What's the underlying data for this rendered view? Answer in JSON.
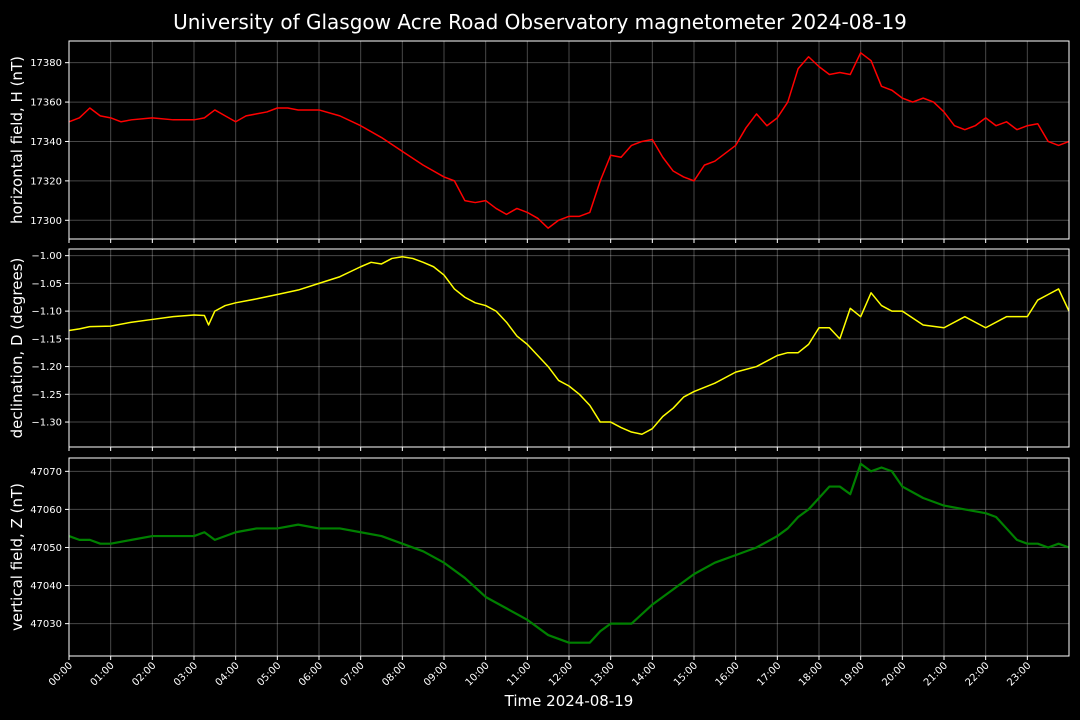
{
  "chart_data": {
    "type": "line",
    "title": "University of Glasgow Acre Road Observatory magnetometer 2024-08-19",
    "xlabel": "Time 2024-08-19",
    "x_ticks": [
      "00:00",
      "01:00",
      "02:00",
      "03:00",
      "04:00",
      "05:00",
      "06:00",
      "07:00",
      "08:00",
      "09:00",
      "10:00",
      "11:00",
      "12:00",
      "13:00",
      "14:00",
      "15:00",
      "16:00",
      "17:00",
      "18:00",
      "19:00",
      "20:00",
      "21:00",
      "22:00",
      "23:00"
    ],
    "xlim_hours": [
      0,
      24
    ],
    "grid": true,
    "panels": [
      {
        "ylabel": "horizontal field, H (nT)",
        "ylim": [
          17290.5,
          17391
        ],
        "yticks": [
          "17300",
          "17320",
          "17340",
          "17360",
          "17380"
        ],
        "ytick_values": [
          17300,
          17320,
          17340,
          17360,
          17380
        ],
        "color": "#ff0000",
        "linewidth": 1.5,
        "series": {
          "x": [
            0,
            0.25,
            0.5,
            0.75,
            1,
            1.25,
            1.5,
            2,
            2.5,
            3,
            3.25,
            3.5,
            3.75,
            4,
            4.25,
            4.5,
            4.75,
            5,
            5.25,
            5.5,
            6,
            6.5,
            7,
            7.5,
            8,
            8.5,
            9,
            9.25,
            9.5,
            9.75,
            10,
            10.25,
            10.5,
            10.75,
            11,
            11.25,
            11.5,
            11.75,
            12,
            12.25,
            12.5,
            12.75,
            13,
            13.25,
            13.5,
            13.75,
            14,
            14.25,
            14.5,
            14.75,
            15,
            15.25,
            15.5,
            15.75,
            16,
            16.25,
            16.5,
            16.75,
            17,
            17.25,
            17.5,
            17.75,
            18,
            18.25,
            18.5,
            18.75,
            19,
            19.25,
            19.5,
            19.75,
            20,
            20.25,
            20.5,
            20.75,
            21,
            21.25,
            21.5,
            21.75,
            22,
            22.25,
            22.5,
            22.75,
            23,
            23.25,
            23.5,
            23.75,
            24
          ],
          "y": [
            17350,
            17352,
            17357,
            17353,
            17352,
            17350,
            17351,
            17352,
            17351,
            17351,
            17352,
            17356,
            17353,
            17350,
            17353,
            17354,
            17355,
            17357,
            17357,
            17356,
            17356,
            17353,
            17348,
            17342,
            17335,
            17328,
            17322,
            17320,
            17310,
            17309,
            17310,
            17306,
            17303,
            17306,
            17304,
            17301,
            17296,
            17300,
            17302,
            17302,
            17304,
            17320,
            17333,
            17332,
            17338,
            17340,
            17341,
            17332,
            17325,
            17322,
            17320,
            17328,
            17330,
            17334,
            17338,
            17347,
            17354,
            17348,
            17352,
            17360,
            17377,
            17383,
            17378,
            17374,
            17375,
            17374,
            17385,
            17381,
            17368,
            17366,
            17362,
            17360,
            17362,
            17360,
            17355,
            17348,
            17346,
            17348,
            17352,
            17348,
            17350,
            17346,
            17348,
            17349,
            17340,
            17338,
            17340
          ]
        }
      },
      {
        "ylabel": "declination, D (degrees)",
        "ylim": [
          -1.345,
          -0.988
        ],
        "yticks": [
          "−1.00",
          "−1.05",
          "−1.10",
          "−1.15",
          "−1.20",
          "−1.25",
          "−1.30"
        ],
        "ytick_values": [
          -1.0,
          -1.05,
          -1.1,
          -1.15,
          -1.2,
          -1.25,
          -1.3
        ],
        "color": "#ffff00",
        "linewidth": 1.5,
        "series": {
          "x": [
            0,
            0.25,
            0.5,
            1,
            1.5,
            2,
            2.5,
            3,
            3.25,
            3.35,
            3.5,
            3.75,
            4,
            4.5,
            5,
            5.5,
            6,
            6.5,
            7,
            7.25,
            7.5,
            7.75,
            8,
            8.25,
            8.5,
            8.75,
            9,
            9.25,
            9.5,
            9.75,
            10,
            10.25,
            10.5,
            10.75,
            11,
            11.25,
            11.5,
            11.75,
            12,
            12.25,
            12.5,
            12.75,
            13,
            13.25,
            13.5,
            13.75,
            14,
            14.25,
            14.5,
            14.75,
            15,
            15.5,
            16,
            16.5,
            17,
            17.25,
            17.5,
            17.75,
            18,
            18.25,
            18.5,
            18.75,
            19,
            19.25,
            19.5,
            19.75,
            20,
            20.5,
            21,
            21.5,
            22,
            22.5,
            23,
            23.25,
            23.5,
            23.75,
            24
          ],
          "y": [
            -1.135,
            -1.132,
            -1.128,
            -1.127,
            -1.12,
            -1.115,
            -1.11,
            -1.107,
            -1.108,
            -1.125,
            -1.1,
            -1.09,
            -1.085,
            -1.078,
            -1.07,
            -1.062,
            -1.05,
            -1.038,
            -1.02,
            -1.012,
            -1.015,
            -1.005,
            -1.002,
            -1.005,
            -1.012,
            -1.02,
            -1.035,
            -1.06,
            -1.075,
            -1.085,
            -1.09,
            -1.1,
            -1.12,
            -1.145,
            -1.16,
            -1.18,
            -1.2,
            -1.225,
            -1.235,
            -1.25,
            -1.27,
            -1.3,
            -1.3,
            -1.31,
            -1.318,
            -1.322,
            -1.312,
            -1.29,
            -1.275,
            -1.255,
            -1.245,
            -1.23,
            -1.21,
            -1.2,
            -1.18,
            -1.175,
            -1.175,
            -1.16,
            -1.13,
            -1.13,
            -1.15,
            -1.095,
            -1.11,
            -1.067,
            -1.09,
            -1.1,
            -1.1,
            -1.125,
            -1.13,
            -1.11,
            -1.13,
            -1.11,
            -1.11,
            -1.08,
            -1.07,
            -1.06,
            -1.1
          ]
        }
      },
      {
        "ylabel": "vertical field, Z (nT)",
        "ylim": [
          47021.5,
          47073.5
        ],
        "yticks": [
          "47030",
          "47040",
          "47050",
          "47060",
          "47070"
        ],
        "ytick_values": [
          47030,
          47040,
          47050,
          47060,
          47070
        ],
        "color": "#008000",
        "linewidth": 2.2,
        "series": {
          "x": [
            0,
            0.25,
            0.5,
            0.75,
            1,
            1.5,
            2,
            2.5,
            3,
            3.25,
            3.5,
            4,
            4.5,
            5,
            5.5,
            6,
            6.5,
            7,
            7.5,
            8,
            8.5,
            9,
            9.5,
            10,
            10.5,
            11,
            11.5,
            12,
            12.5,
            12.75,
            13,
            13.25,
            13.5,
            14,
            14.5,
            15,
            15.5,
            16,
            16.5,
            17,
            17.25,
            17.5,
            17.75,
            18,
            18.25,
            18.5,
            18.75,
            19,
            19.25,
            19.5,
            19.75,
            20,
            20.5,
            21,
            21.5,
            22,
            22.25,
            22.5,
            22.75,
            23,
            23.25,
            23.5,
            23.75,
            24
          ],
          "y": [
            47053,
            47052,
            47052,
            47051,
            47051,
            47052,
            47053,
            47053,
            47053,
            47054,
            47052,
            47054,
            47055,
            47055,
            47056,
            47055,
            47055,
            47054,
            47053,
            47051,
            47049,
            47046,
            47042,
            47037,
            47034,
            47031,
            47027,
            47025,
            47025,
            47028,
            47030,
            47030,
            47030,
            47035,
            47039,
            47043,
            47046,
            47048,
            47050,
            47053,
            47055,
            47058,
            47060,
            47063,
            47066,
            47066,
            47064,
            47072,
            47070,
            47071,
            47070,
            47066,
            47063,
            47061,
            47060,
            47059,
            47058,
            47055,
            47052,
            47051,
            47051,
            47050,
            47051,
            47050
          ]
        }
      }
    ]
  }
}
